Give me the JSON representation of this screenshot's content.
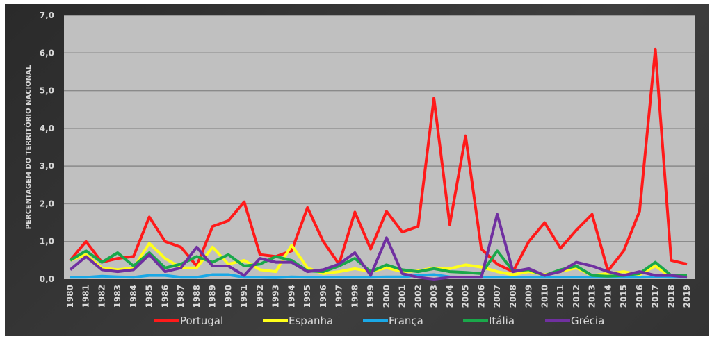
{
  "chart_data": {
    "type": "line",
    "title": "",
    "xlabel": "",
    "ylabel": "PERCENTAGEM DO TERRITÓRIO NACIONAL",
    "ylim": [
      0,
      7
    ],
    "yticks": [
      "0,0",
      "1,0",
      "2,0",
      "3,0",
      "4,0",
      "5,0",
      "6,0",
      "7,0"
    ],
    "grid": true,
    "legend": "bottom",
    "x": [
      "1980",
      "1981",
      "1982",
      "1983",
      "1984",
      "1985",
      "1986",
      "1987",
      "1988",
      "1989",
      "1990",
      "1991",
      "1992",
      "1993",
      "1994",
      "1995",
      "1996",
      "1997",
      "1998",
      "1999",
      "2000",
      "2001",
      "2002",
      "2003",
      "2004",
      "2005",
      "2006",
      "2007",
      "2008",
      "2009",
      "2010",
      "2011",
      "2012",
      "2013",
      "2014",
      "2015",
      "2016",
      "2017",
      "2018",
      "2019"
    ],
    "series": [
      {
        "name": "Portugal",
        "color": "#ff1a1a",
        "values": [
          0.5,
          1.0,
          0.45,
          0.55,
          0.6,
          1.65,
          1.0,
          0.85,
          0.35,
          1.4,
          1.55,
          2.05,
          0.65,
          0.6,
          0.75,
          1.9,
          1.0,
          0.4,
          1.78,
          0.8,
          1.8,
          1.25,
          1.4,
          4.8,
          1.45,
          3.8,
          0.8,
          0.4,
          0.2,
          1.0,
          1.5,
          0.82,
          1.3,
          1.72,
          0.22,
          0.75,
          1.8,
          6.1,
          0.5,
          0.4
        ]
      },
      {
        "name": "Espanha",
        "color": "#ffff1a",
        "values": [
          0.5,
          0.65,
          0.3,
          0.25,
          0.3,
          0.95,
          0.55,
          0.3,
          0.3,
          0.85,
          0.4,
          0.5,
          0.25,
          0.2,
          0.9,
          0.3,
          0.15,
          0.2,
          0.28,
          0.2,
          0.3,
          0.2,
          0.22,
          0.3,
          0.28,
          0.38,
          0.32,
          0.2,
          0.12,
          0.2,
          0.12,
          0.2,
          0.3,
          0.1,
          0.15,
          0.2,
          0.12,
          0.35,
          0.05,
          0.1
        ]
      },
      {
        "name": "França",
        "color": "#1aa8e6",
        "values": [
          0.05,
          0.05,
          0.08,
          0.06,
          0.05,
          0.1,
          0.1,
          0.05,
          0.05,
          0.12,
          0.12,
          0.05,
          0.05,
          0.04,
          0.06,
          0.05,
          0.05,
          0.05,
          0.05,
          0.05,
          0.06,
          0.06,
          0.1,
          0.12,
          0.06,
          0.05,
          0.05,
          0.05,
          0.05,
          0.05,
          0.05,
          0.05,
          0.05,
          0.05,
          0.05,
          0.05,
          0.05,
          0.06,
          0.05,
          0.05
        ]
      },
      {
        "name": "Itália",
        "color": "#1aa84a",
        "values": [
          0.5,
          0.75,
          0.45,
          0.7,
          0.35,
          0.7,
          0.3,
          0.4,
          0.6,
          0.45,
          0.65,
          0.35,
          0.4,
          0.6,
          0.5,
          0.22,
          0.2,
          0.35,
          0.55,
          0.2,
          0.38,
          0.25,
          0.2,
          0.28,
          0.2,
          0.18,
          0.15,
          0.75,
          0.22,
          0.25,
          0.1,
          0.25,
          0.35,
          0.1,
          0.08,
          0.1,
          0.15,
          0.45,
          0.1,
          0.1
        ]
      },
      {
        "name": "Grécia",
        "color": "#7030a0",
        "values": [
          0.25,
          0.6,
          0.25,
          0.2,
          0.25,
          0.65,
          0.2,
          0.3,
          0.85,
          0.35,
          0.35,
          0.1,
          0.55,
          0.45,
          0.45,
          0.2,
          0.25,
          0.4,
          0.7,
          0.1,
          1.1,
          0.15,
          0.05,
          0.0,
          0.05,
          0.05,
          0.05,
          1.72,
          0.2,
          0.28,
          0.1,
          0.2,
          0.45,
          0.35,
          0.2,
          0.1,
          0.2,
          0.1,
          0.1,
          0.05
        ]
      }
    ]
  }
}
